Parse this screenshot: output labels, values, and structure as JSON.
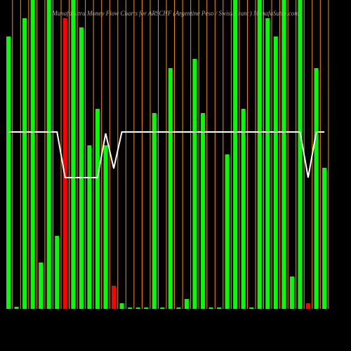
{
  "chart_data": {
    "type": "bar",
    "title": "MunafaSutra  Money Flow  Charts for ARSCHF  (Argentine  Peso  / Swiss Franc) MunafaSutra.com",
    "ylim": [
      0,
      440
    ],
    "values": [
      388,
      3,
      414,
      440,
      66,
      440,
      104,
      414,
      440,
      401,
      233,
      285,
      233,
      33,
      8,
      2,
      2,
      2,
      279,
      2,
      343,
      2,
      14,
      356,
      279,
      2,
      2,
      220,
      440,
      285,
      2,
      440,
      414,
      388,
      440,
      46,
      440,
      8,
      343,
      201
    ],
    "colors": [
      "#00ff00",
      "#00ff00",
      "#00ff00",
      "#00ff00",
      "#00ff00",
      "#00ff00",
      "#00ff00",
      "#ff0000",
      "#00ff00",
      "#00ff00",
      "#00ff00",
      "#00ff00",
      "#00ff00",
      "#ff0000",
      "#00ff00",
      "#00ff00",
      "#00ff00",
      "#00ff00",
      "#00ff00",
      "#00ff00",
      "#00ff00",
      "#00ff00",
      "#00ff00",
      "#00ff00",
      "#00ff00",
      "#00ff00",
      "#00ff00",
      "#00ff00",
      "#00ff00",
      "#00ff00",
      "#00ff00",
      "#00ff00",
      "#00ff00",
      "#00ff00",
      "#00ff00",
      "#00ff00",
      "#00ff00",
      "#ff0000",
      "#00ff00",
      "#00ff00"
    ],
    "line": {
      "color": "#ffffff",
      "values": [
        252,
        252,
        252,
        252,
        252,
        252,
        252,
        187,
        187,
        187,
        187,
        187,
        250,
        200,
        252,
        252,
        252,
        252,
        252,
        252,
        252,
        252,
        252,
        252,
        252,
        252,
        252,
        252,
        252,
        252,
        252,
        252,
        252,
        252,
        252,
        252,
        252,
        187,
        252,
        252
      ]
    },
    "guide_color": "#ff8c00"
  }
}
